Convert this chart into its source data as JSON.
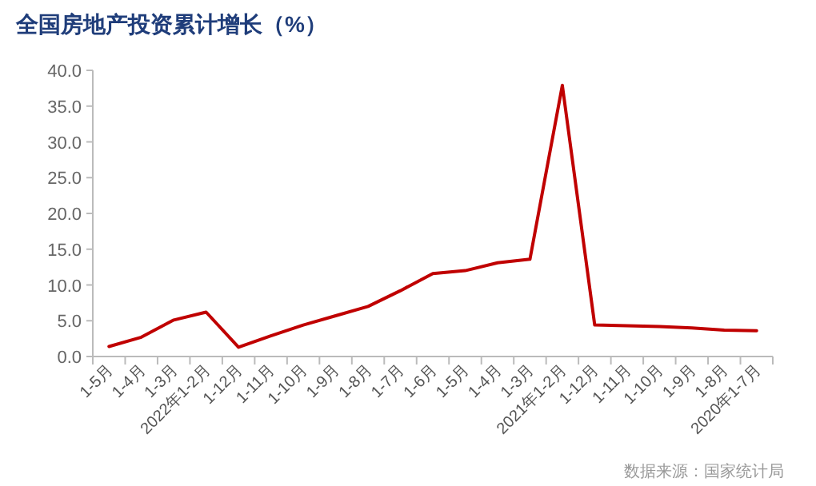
{
  "chart_data": {
    "type": "line",
    "title": "全国房地产投资累计增长（%）",
    "categories": [
      "1-5月",
      "1-4月",
      "1-3月",
      "2022年1-2月",
      "1-12月",
      "1-11月",
      "1-10月",
      "1-9月",
      "1-8月",
      "1-7月",
      "1-6月",
      "1-5月",
      "1-4月",
      "1-3月",
      "2021年1-2月",
      "1-12月",
      "1-11月",
      "1-10月",
      "1-9月",
      "1-8月",
      "2020年1-7月"
    ],
    "series": [
      {
        "color": "#c00000",
        "values": [
          1.4,
          2.7,
          5.1,
          6.2,
          1.3,
          2.9,
          4.4,
          5.7,
          7.0,
          9.2,
          11.6,
          12.0,
          13.1,
          13.6,
          37.9,
          4.4,
          4.3,
          4.2,
          4.0,
          3.7,
          3.6
        ]
      }
    ],
    "ylim": [
      0,
      40
    ],
    "yticks": [
      {
        "value": 0,
        "label": "0.0"
      },
      {
        "value": 5,
        "label": "5.0"
      },
      {
        "value": 10,
        "label": "10.0"
      },
      {
        "value": 15,
        "label": "15.0"
      },
      {
        "value": 20,
        "label": "20.0"
      },
      {
        "value": 25,
        "label": "25.0"
      },
      {
        "value": 30,
        "label": "30.0"
      },
      {
        "value": 35,
        "label": "35.0"
      },
      {
        "value": 40,
        "label": "40.0"
      }
    ],
    "grid": false,
    "marker": "none",
    "line_style": "solid",
    "annotations": [
      "数据来源：国家统计局"
    ]
  }
}
